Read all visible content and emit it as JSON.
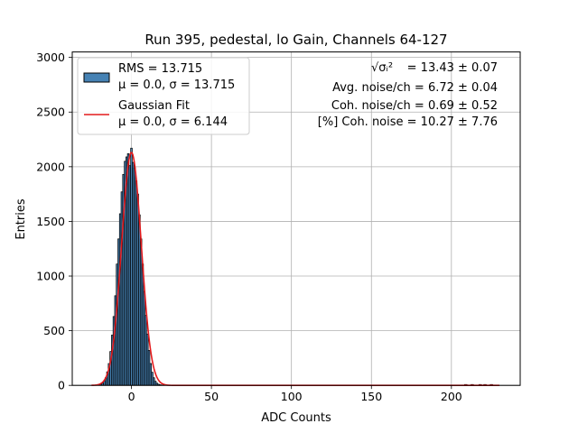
{
  "chart_data": {
    "type": "bar",
    "title": "Run 395, pedestal, lo Gain, Channels 64-127",
    "xlabel": "ADC Counts",
    "ylabel": "Entries",
    "xlim": [
      -37,
      243
    ],
    "ylim": [
      0,
      3050
    ],
    "xticks": [
      0,
      50,
      100,
      150,
      200
    ],
    "yticks": [
      0,
      500,
      1000,
      1500,
      2000,
      2500,
      3000
    ],
    "grid": true,
    "legend_position": "top-left",
    "legend": [
      {
        "label": "RMS = 13.715",
        "sublabel": "μ = 0.0, σ = 13.715",
        "kind": "histogram"
      },
      {
        "label": "Gaussian Fit",
        "sublabel": "μ = 0.0, σ = 6.144",
        "kind": "line"
      }
    ],
    "annotations": [
      {
        "prefix": "√σᵢ²",
        "text": " = 13.43 ± 0.07"
      },
      {
        "prefix": "",
        "text": "Avg. noise/ch = 6.72 ± 0.04"
      },
      {
        "prefix": "",
        "text": "Coh. noise/ch = 0.69 ± 0.52"
      },
      {
        "prefix": "",
        "text": "[%] Coh. noise = 10.27 ± 7.76"
      }
    ],
    "histogram": {
      "name": "RMS = 13.715",
      "bin_width": 1,
      "x": [
        -20,
        -19,
        -18,
        -17,
        -16,
        -15,
        -14,
        -13,
        -12,
        -11,
        -10,
        -9,
        -8,
        -7,
        -6,
        -5,
        -4,
        -3,
        -2,
        -1,
        0,
        1,
        2,
        3,
        4,
        5,
        6,
        7,
        8,
        9,
        10,
        11,
        12,
        13,
        14,
        15,
        16,
        17,
        18,
        19,
        20
      ],
      "values": [
        9,
        11,
        20,
        39,
        70,
        124,
        200,
        310,
        460,
        630,
        820,
        1110,
        1340,
        1570,
        1770,
        1930,
        2050,
        2090,
        2120,
        2010,
        2170,
        2040,
        1990,
        1870,
        1750,
        1560,
        1340,
        1110,
        860,
        640,
        470,
        320,
        200,
        120,
        70,
        38,
        20,
        10,
        6,
        3,
        1
      ],
      "outliers": [
        {
          "x": 209,
          "value": 1
        },
        {
          "x": 213,
          "value": 1
        },
        {
          "x": 218,
          "value": 1
        },
        {
          "x": 221,
          "value": 1
        },
        {
          "x": 225,
          "value": 1
        }
      ]
    },
    "fit": {
      "name": "Gaussian Fit",
      "mu": 0.0,
      "sigma": 6.144,
      "amplitude": 2130,
      "x_range": [
        -25,
        230
      ]
    },
    "colors": {
      "bar_fill": "#4682b4",
      "bar_edge": "#000000",
      "fit_line": "#e41a1c",
      "grid": "#b0b0b0"
    }
  }
}
